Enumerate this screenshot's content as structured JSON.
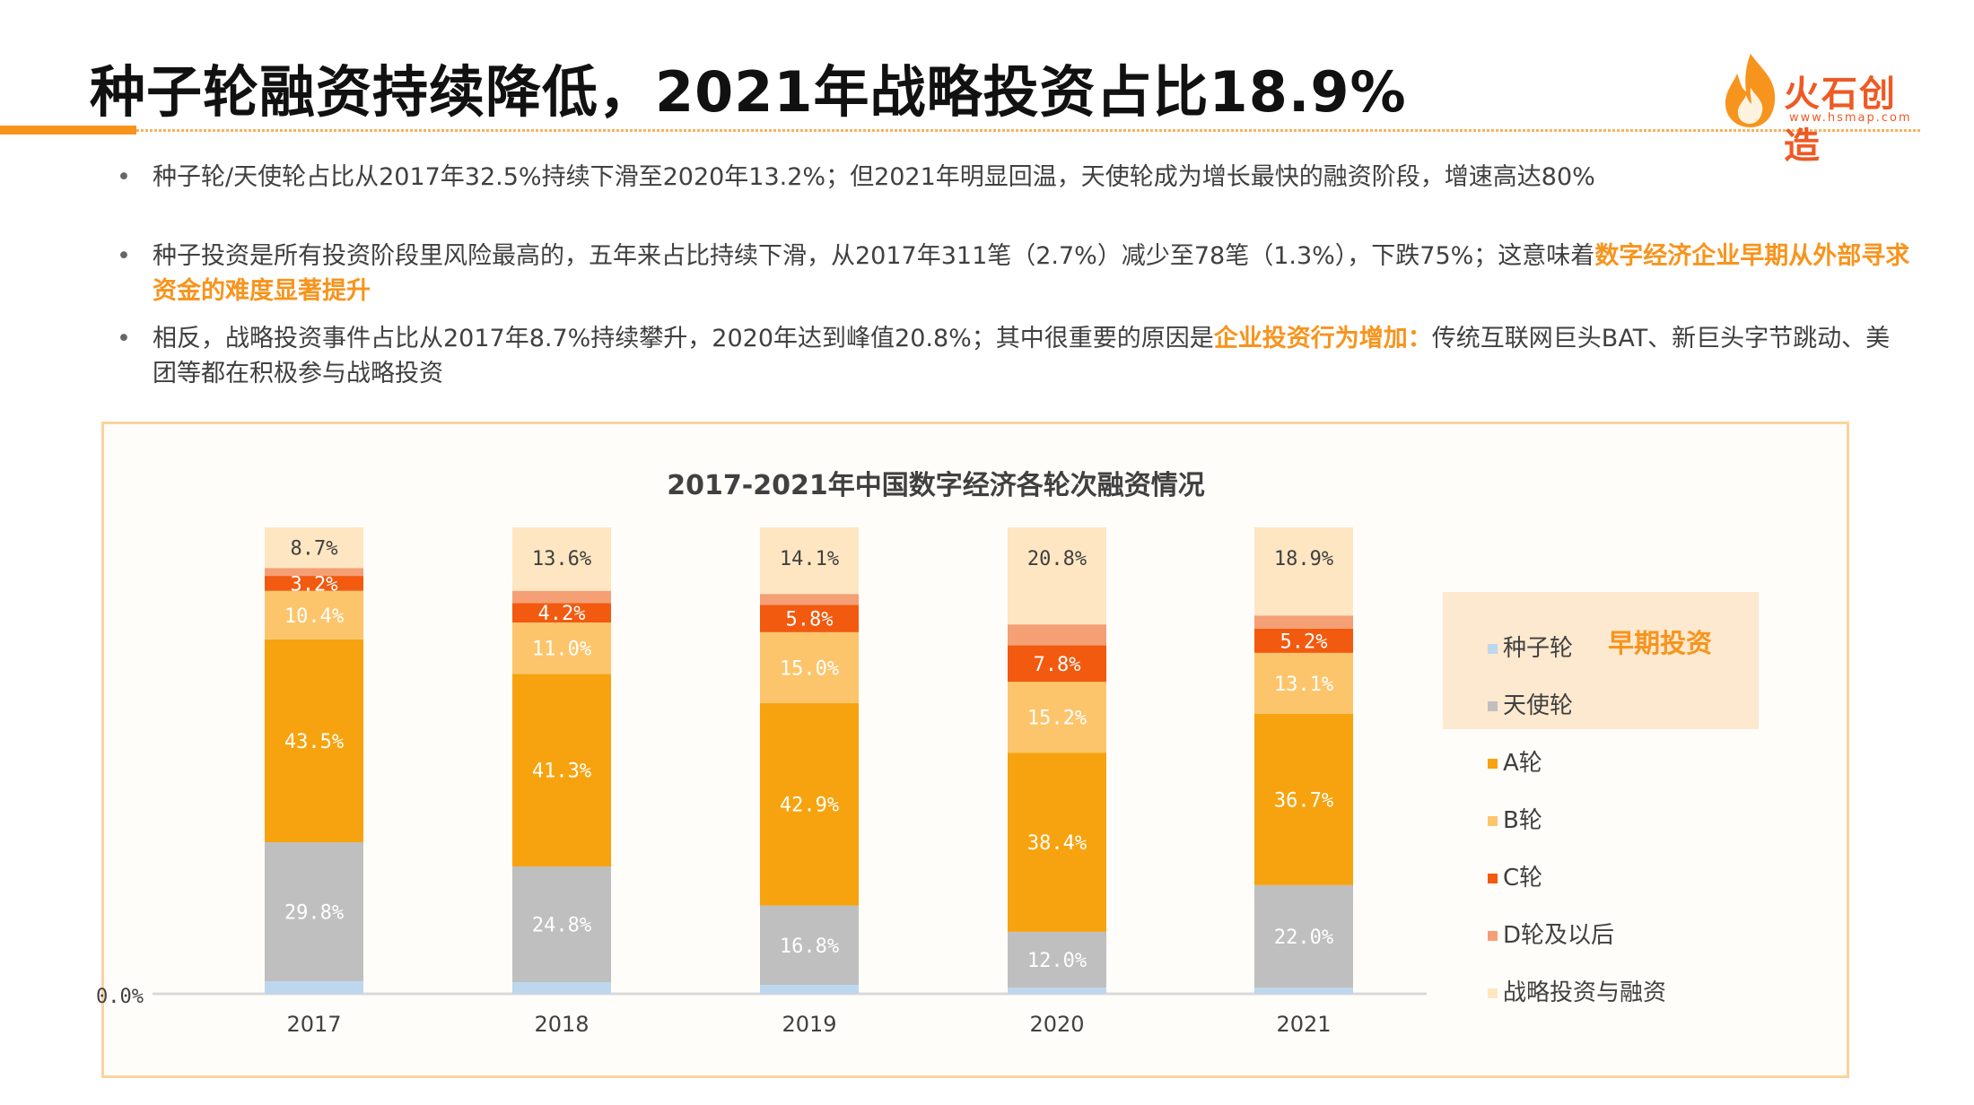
{
  "page": {
    "title": "种子轮融资持续降低，2021年战略投资占比18.9%",
    "logo_name": "火石创造",
    "logo_url": "www.hsmap.com"
  },
  "bullets": [
    {
      "pre": "种子轮/天使轮占比从2017年32.5%持续下滑至2020年13.2%；但2021年明显回温，天使轮成为增长最快的融资阶段，增速高达80%",
      "highlight": "",
      "post": ""
    },
    {
      "pre": "种子投资是所有投资阶段里风险最高的，五年来占比持续下滑，从2017年311笔（2.7%）减少至78笔（1.3%），下跌75%；这意味着",
      "highlight": "数字经济企业早期从外部寻求资金的难度显著提升",
      "post": ""
    },
    {
      "pre": "相反，战略投资事件占比从2017年8.7%持续攀升，2020年达到峰值20.8%；其中很重要的原因是",
      "highlight": "企业投资行为增加：",
      "post": "传统互联网巨头BAT、新巨头字节跳动、美团等都在积极参与战略投资"
    }
  ],
  "bullet_marker": "•",
  "legend_group_label": "早期投资",
  "chart_data": {
    "type": "bar",
    "stacked": true,
    "title": "2017-2021年中国数字经济各轮次融资情况",
    "categories": [
      "2017",
      "2018",
      "2019",
      "2020",
      "2021"
    ],
    "ylim": [
      0,
      100
    ],
    "y_tick_labels": [
      "0.0%"
    ],
    "series": [
      {
        "name": "种子轮",
        "color": "#bdd7ee",
        "values": [
          2.7,
          2.5,
          1.9,
          1.3,
          1.3
        ]
      },
      {
        "name": "天使轮",
        "color": "#bfbfbf",
        "values": [
          29.8,
          24.8,
          16.8,
          12.0,
          22.0
        ]
      },
      {
        "name": "A轮",
        "color": "#f7a30f",
        "values": [
          43.5,
          41.3,
          42.9,
          38.4,
          36.7
        ]
      },
      {
        "name": "B轮",
        "color": "#fcc56b",
        "values": [
          10.4,
          11.0,
          15.0,
          15.2,
          13.1
        ]
      },
      {
        "name": "C轮",
        "color": "#f15a0f",
        "values": [
          3.2,
          4.2,
          5.8,
          7.8,
          5.2
        ]
      },
      {
        "name": "D轮及以后",
        "color": "#f59f74",
        "values": [
          1.7,
          2.6,
          2.3,
          4.5,
          2.8
        ]
      },
      {
        "name": "战略投资与融资",
        "color": "#fde6c1",
        "values": [
          8.7,
          13.6,
          14.1,
          20.8,
          18.9
        ]
      }
    ],
    "data_labels": [
      {
        "series": "天使轮",
        "values": [
          "29.8%",
          "24.8%",
          "16.8%",
          "12.0%",
          "22.0%"
        ]
      },
      {
        "series": "A轮",
        "values": [
          "43.5%",
          "41.3%",
          "42.9%",
          "38.4%",
          "36.7%"
        ]
      },
      {
        "series": "B轮",
        "values": [
          "10.4%",
          "11.0%",
          "15.0%",
          "15.2%",
          "13.1%"
        ]
      },
      {
        "series": "C轮",
        "values": [
          "3.2%",
          "4.2%",
          "5.8%",
          "7.8%",
          "5.2%"
        ]
      },
      {
        "series": "战略投资与融资",
        "values": [
          "8.7%",
          "13.6%",
          "14.1%",
          "20.8%",
          "18.9%"
        ]
      }
    ],
    "legend_position": "right",
    "grid": false
  }
}
